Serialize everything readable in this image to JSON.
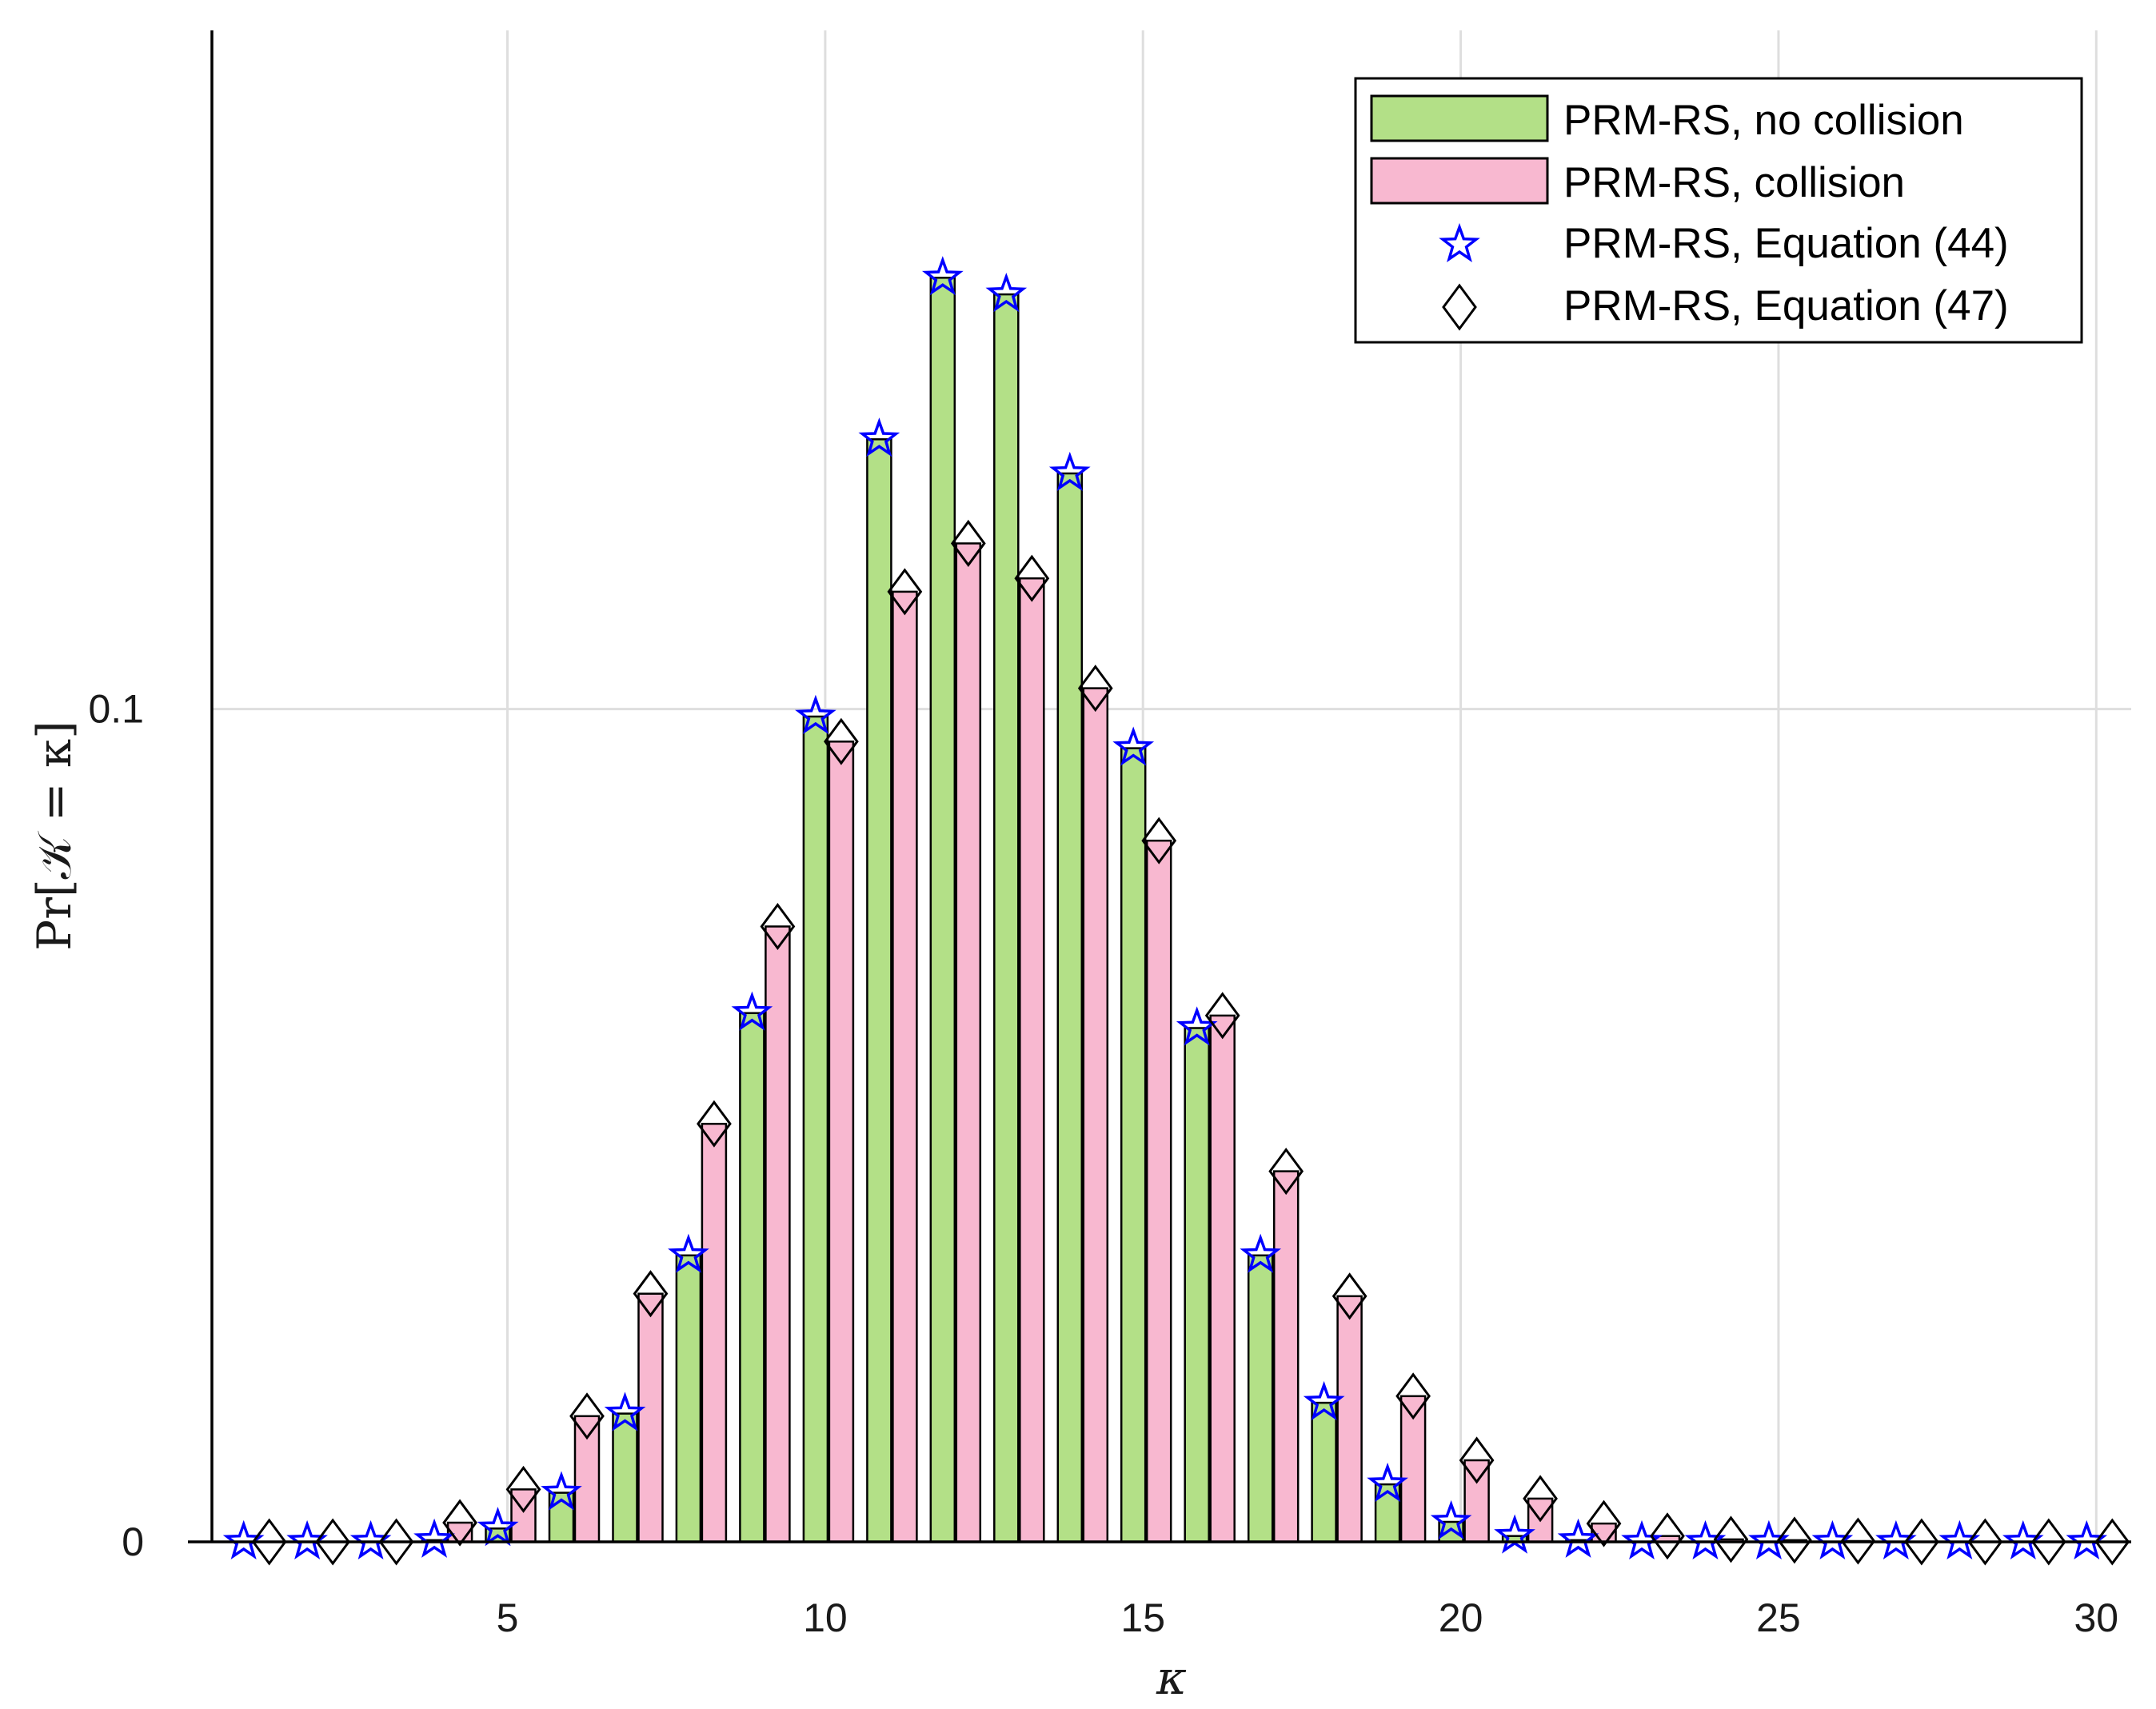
{
  "chart_data": {
    "type": "bar",
    "x": [
      1,
      2,
      3,
      4,
      5,
      6,
      7,
      8,
      9,
      10,
      11,
      12,
      13,
      14,
      15,
      16,
      17,
      18,
      19,
      20,
      21,
      22,
      23,
      24,
      25,
      26,
      27,
      28,
      29,
      30
    ],
    "xticks": [
      5,
      10,
      15,
      20,
      25,
      30
    ],
    "xtick_labels": [
      "5",
      "10",
      "15",
      "20",
      "25",
      "30"
    ],
    "yticks": [
      0,
      0.1
    ],
    "ytick_labels": [
      "0",
      "0.1"
    ],
    "xlim": [
      0.35,
      30.55
    ],
    "ylim": [
      0,
      0.1815
    ],
    "xlabel": "κ",
    "ylabel": "Pr[𝒦 = κ]",
    "grid": true,
    "legend_position": "top-right",
    "series": [
      {
        "name": "PRM-RS, no collision",
        "kind": "bar",
        "color": "#b3e087",
        "values": [
          0,
          0,
          0,
          0.0002,
          0.0016,
          0.0059,
          0.0154,
          0.0344,
          0.0635,
          0.0991,
          0.1324,
          0.1518,
          0.1498,
          0.1283,
          0.0953,
          0.0617,
          0.0344,
          0.0167,
          0.0069,
          0.0024,
          0.0007,
          0.0002,
          0,
          0,
          0,
          0,
          0,
          0,
          0,
          0
        ]
      },
      {
        "name": "PRM-RS, collision",
        "kind": "bar",
        "color": "#f8b8d0",
        "values": [
          0,
          0,
          0,
          0.0023,
          0.0063,
          0.0151,
          0.0298,
          0.0502,
          0.0739,
          0.0961,
          0.1141,
          0.1199,
          0.1157,
          0.1025,
          0.0842,
          0.0632,
          0.0445,
          0.0295,
          0.0175,
          0.0098,
          0.0052,
          0.0022,
          0.0007,
          0.0003,
          0.0002,
          0.0001,
          0,
          0,
          0,
          0
        ]
      },
      {
        "name": "PRM-RS, Equation (44)",
        "kind": "marker",
        "marker": "star",
        "color": "#0000ff",
        "values": [
          0,
          0,
          0,
          0.0002,
          0.0016,
          0.0059,
          0.0154,
          0.0344,
          0.0635,
          0.0991,
          0.1324,
          0.1518,
          0.1498,
          0.1283,
          0.0953,
          0.0617,
          0.0344,
          0.0167,
          0.0069,
          0.0024,
          0.0007,
          0.0002,
          0,
          0,
          0,
          0,
          0,
          0,
          0,
          0
        ]
      },
      {
        "name": "PRM-RS, Equation (47)",
        "kind": "marker",
        "marker": "diamond",
        "color": "#000000",
        "values": [
          0,
          0,
          0,
          0.0023,
          0.0063,
          0.0151,
          0.0298,
          0.0502,
          0.0739,
          0.0961,
          0.1141,
          0.1199,
          0.1157,
          0.1025,
          0.0842,
          0.0632,
          0.0445,
          0.0295,
          0.0175,
          0.0098,
          0.0052,
          0.0022,
          0.0007,
          0.0003,
          0.0002,
          0.0001,
          0,
          0,
          0,
          0
        ]
      }
    ]
  }
}
